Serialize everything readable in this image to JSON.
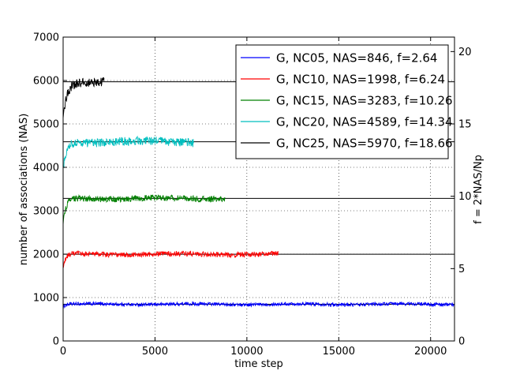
{
  "chart_data": {
    "type": "line",
    "xlabel": "time step",
    "ylabel": "number of associations (NAS)",
    "y2label": "f = 2*NAS/Np",
    "xlim": [
      0,
      21300
    ],
    "ylim": [
      0,
      7000
    ],
    "y2lim": [
      0,
      21
    ],
    "xticks": [
      0,
      5000,
      10000,
      15000,
      20000
    ],
    "xtick_labels": [
      "0",
      "5000",
      "10000",
      "15000",
      "20000"
    ],
    "yticks": [
      0,
      1000,
      2000,
      3000,
      4000,
      5000,
      6000,
      7000
    ],
    "ytick_labels": [
      "0",
      "1000",
      "2000",
      "3000",
      "4000",
      "5000",
      "6000",
      "7000"
    ],
    "y2ticks": [
      0,
      5,
      10,
      15,
      20
    ],
    "y2tick_labels": [
      "0",
      "5",
      "10",
      "15",
      "20"
    ],
    "grid": true,
    "legend_position": "top-right",
    "series": [
      {
        "name": "G, NC05, NAS=846, f=2.64",
        "color": "#0000ff",
        "nas": 846,
        "start": 760,
        "rise": 300,
        "x_end": 21300,
        "noise": 40,
        "x": [
          0,
          300,
          5000,
          10000,
          15000,
          21300
        ],
        "y": [
          760,
          820,
          846,
          846,
          846,
          846
        ]
      },
      {
        "name": "G, NC10, NAS=1998, f=6.24",
        "color": "#ff0000",
        "nas": 1998,
        "start": 1650,
        "rise": 400,
        "x_end": 11700,
        "noise": 60,
        "x": [
          0,
          400,
          3000,
          6000,
          9000,
          11700
        ],
        "y": [
          1650,
          1950,
          1998,
          2000,
          2000,
          1998
        ]
      },
      {
        "name": "G, NC15, NAS=3283, f=10.26",
        "color": "#008000",
        "nas": 3283,
        "start": 2700,
        "rise": 500,
        "x_end": 8800,
        "noise": 70,
        "x": [
          0,
          500,
          2000,
          5000,
          7000,
          8800
        ],
        "y": [
          2700,
          3150,
          3250,
          3283,
          3300,
          3283
        ]
      },
      {
        "name": "G, NC20, NAS=4589, f=14.34",
        "color": "#00bfbf",
        "nas": 4589,
        "start": 3950,
        "rise": 500,
        "x_end": 7100,
        "noise": 100,
        "x": [
          0,
          500,
          2000,
          4000,
          6000,
          7100
        ],
        "y": [
          3950,
          4450,
          4560,
          4589,
          4589,
          4589
        ]
      },
      {
        "name": "G, NC25, NAS=5970, f=18.66",
        "color": "#000000",
        "nas": 5970,
        "start": 5150,
        "rise": 600,
        "x_end": 2250,
        "noise": 110,
        "x": [
          0,
          600,
          1000,
          1500,
          2250
        ],
        "y": [
          5150,
          5900,
          6050,
          6000,
          5970
        ]
      }
    ]
  }
}
